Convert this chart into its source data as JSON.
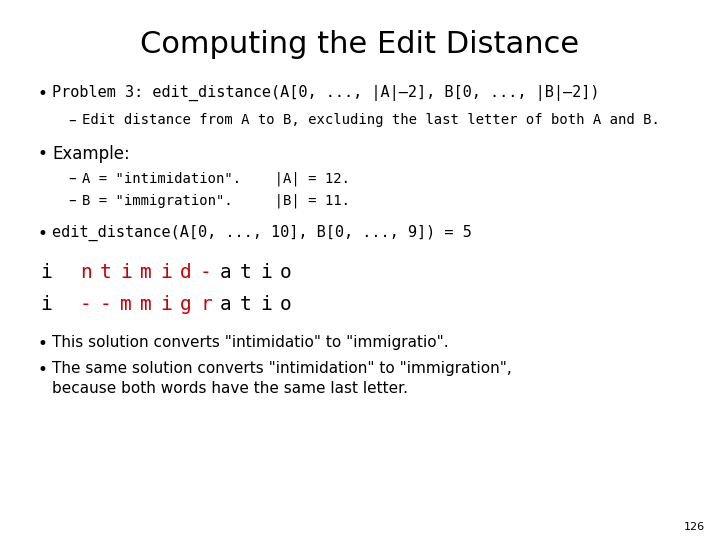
{
  "title": "Computing the Edit Distance",
  "background_color": "#ffffff",
  "text_color": "#000000",
  "red_color": "#cc0000",
  "slide_number": "126",
  "title_fontsize": 22,
  "body_fontsize": 11,
  "sub_fontsize": 10,
  "mono_fontsize": 14,
  "small_fontsize": 9,
  "line1_chars": [
    [
      "i",
      "#000000"
    ],
    [
      " ",
      "#000000"
    ],
    [
      "n",
      "#cc0000"
    ],
    [
      "t",
      "#cc0000"
    ],
    [
      "i",
      "#cc0000"
    ],
    [
      "m",
      "#cc0000"
    ],
    [
      "i",
      "#cc0000"
    ],
    [
      "d",
      "#cc0000"
    ],
    [
      "-",
      "#cc0000"
    ],
    [
      "a",
      "#000000"
    ],
    [
      "t",
      "#000000"
    ],
    [
      "i",
      "#000000"
    ],
    [
      "o",
      "#000000"
    ]
  ],
  "line2_chars": [
    [
      "i",
      "#000000"
    ],
    [
      " ",
      "#000000"
    ],
    [
      "-",
      "#cc0000"
    ],
    [
      "-",
      "#cc0000"
    ],
    [
      "m",
      "#cc0000"
    ],
    [
      "m",
      "#cc0000"
    ],
    [
      "i",
      "#cc0000"
    ],
    [
      "g",
      "#cc0000"
    ],
    [
      "r",
      "#cc0000"
    ],
    [
      "a",
      "#000000"
    ],
    [
      "t",
      "#000000"
    ],
    [
      "i",
      "#000000"
    ],
    [
      "o",
      "#000000"
    ]
  ]
}
